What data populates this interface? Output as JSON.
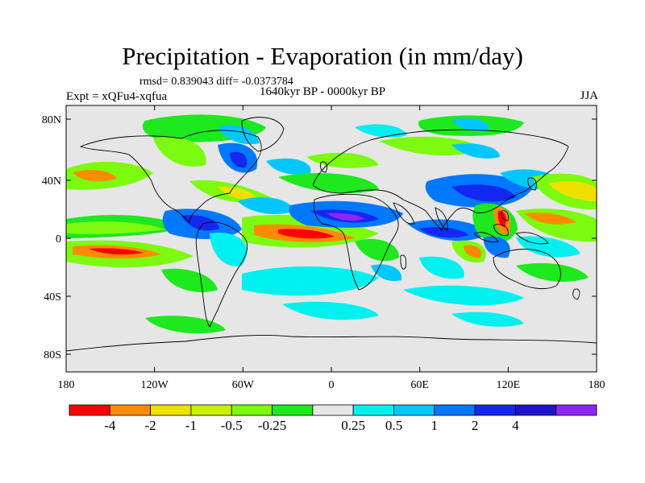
{
  "title": "Precipitation - Evaporation (in mm/day)",
  "stats": "rmsd= 0.839043 diff= -0.0373784",
  "period": "1640kyr BP - 0000kyr BP",
  "experiment": "Expt = xQFu4-xqfua",
  "season": "JJA",
  "map": {
    "background_color": "#e6e6e6",
    "coastline_color": "#000000",
    "lat_ticks": [
      "80N",
      "40N",
      "0",
      "40S",
      "80S"
    ],
    "lon_ticks": [
      "180",
      "120W",
      "60W",
      "0",
      "60E",
      "120E",
      "180"
    ]
  },
  "colorbar": {
    "colors": [
      "#ff0000",
      "#ff8c00",
      "#f0e000",
      "#c8f000",
      "#7cfa10",
      "#1ee81e",
      "#e6e6e6",
      "#00f0f0",
      "#00c8ff",
      "#0078ff",
      "#1428f0",
      "#1e14c8",
      "#8c28f0"
    ],
    "labels": [
      "-4",
      "-2",
      "-1",
      "-0.5",
      "-0.25",
      "0.25",
      "0.5",
      "1",
      "2",
      "4"
    ]
  }
}
